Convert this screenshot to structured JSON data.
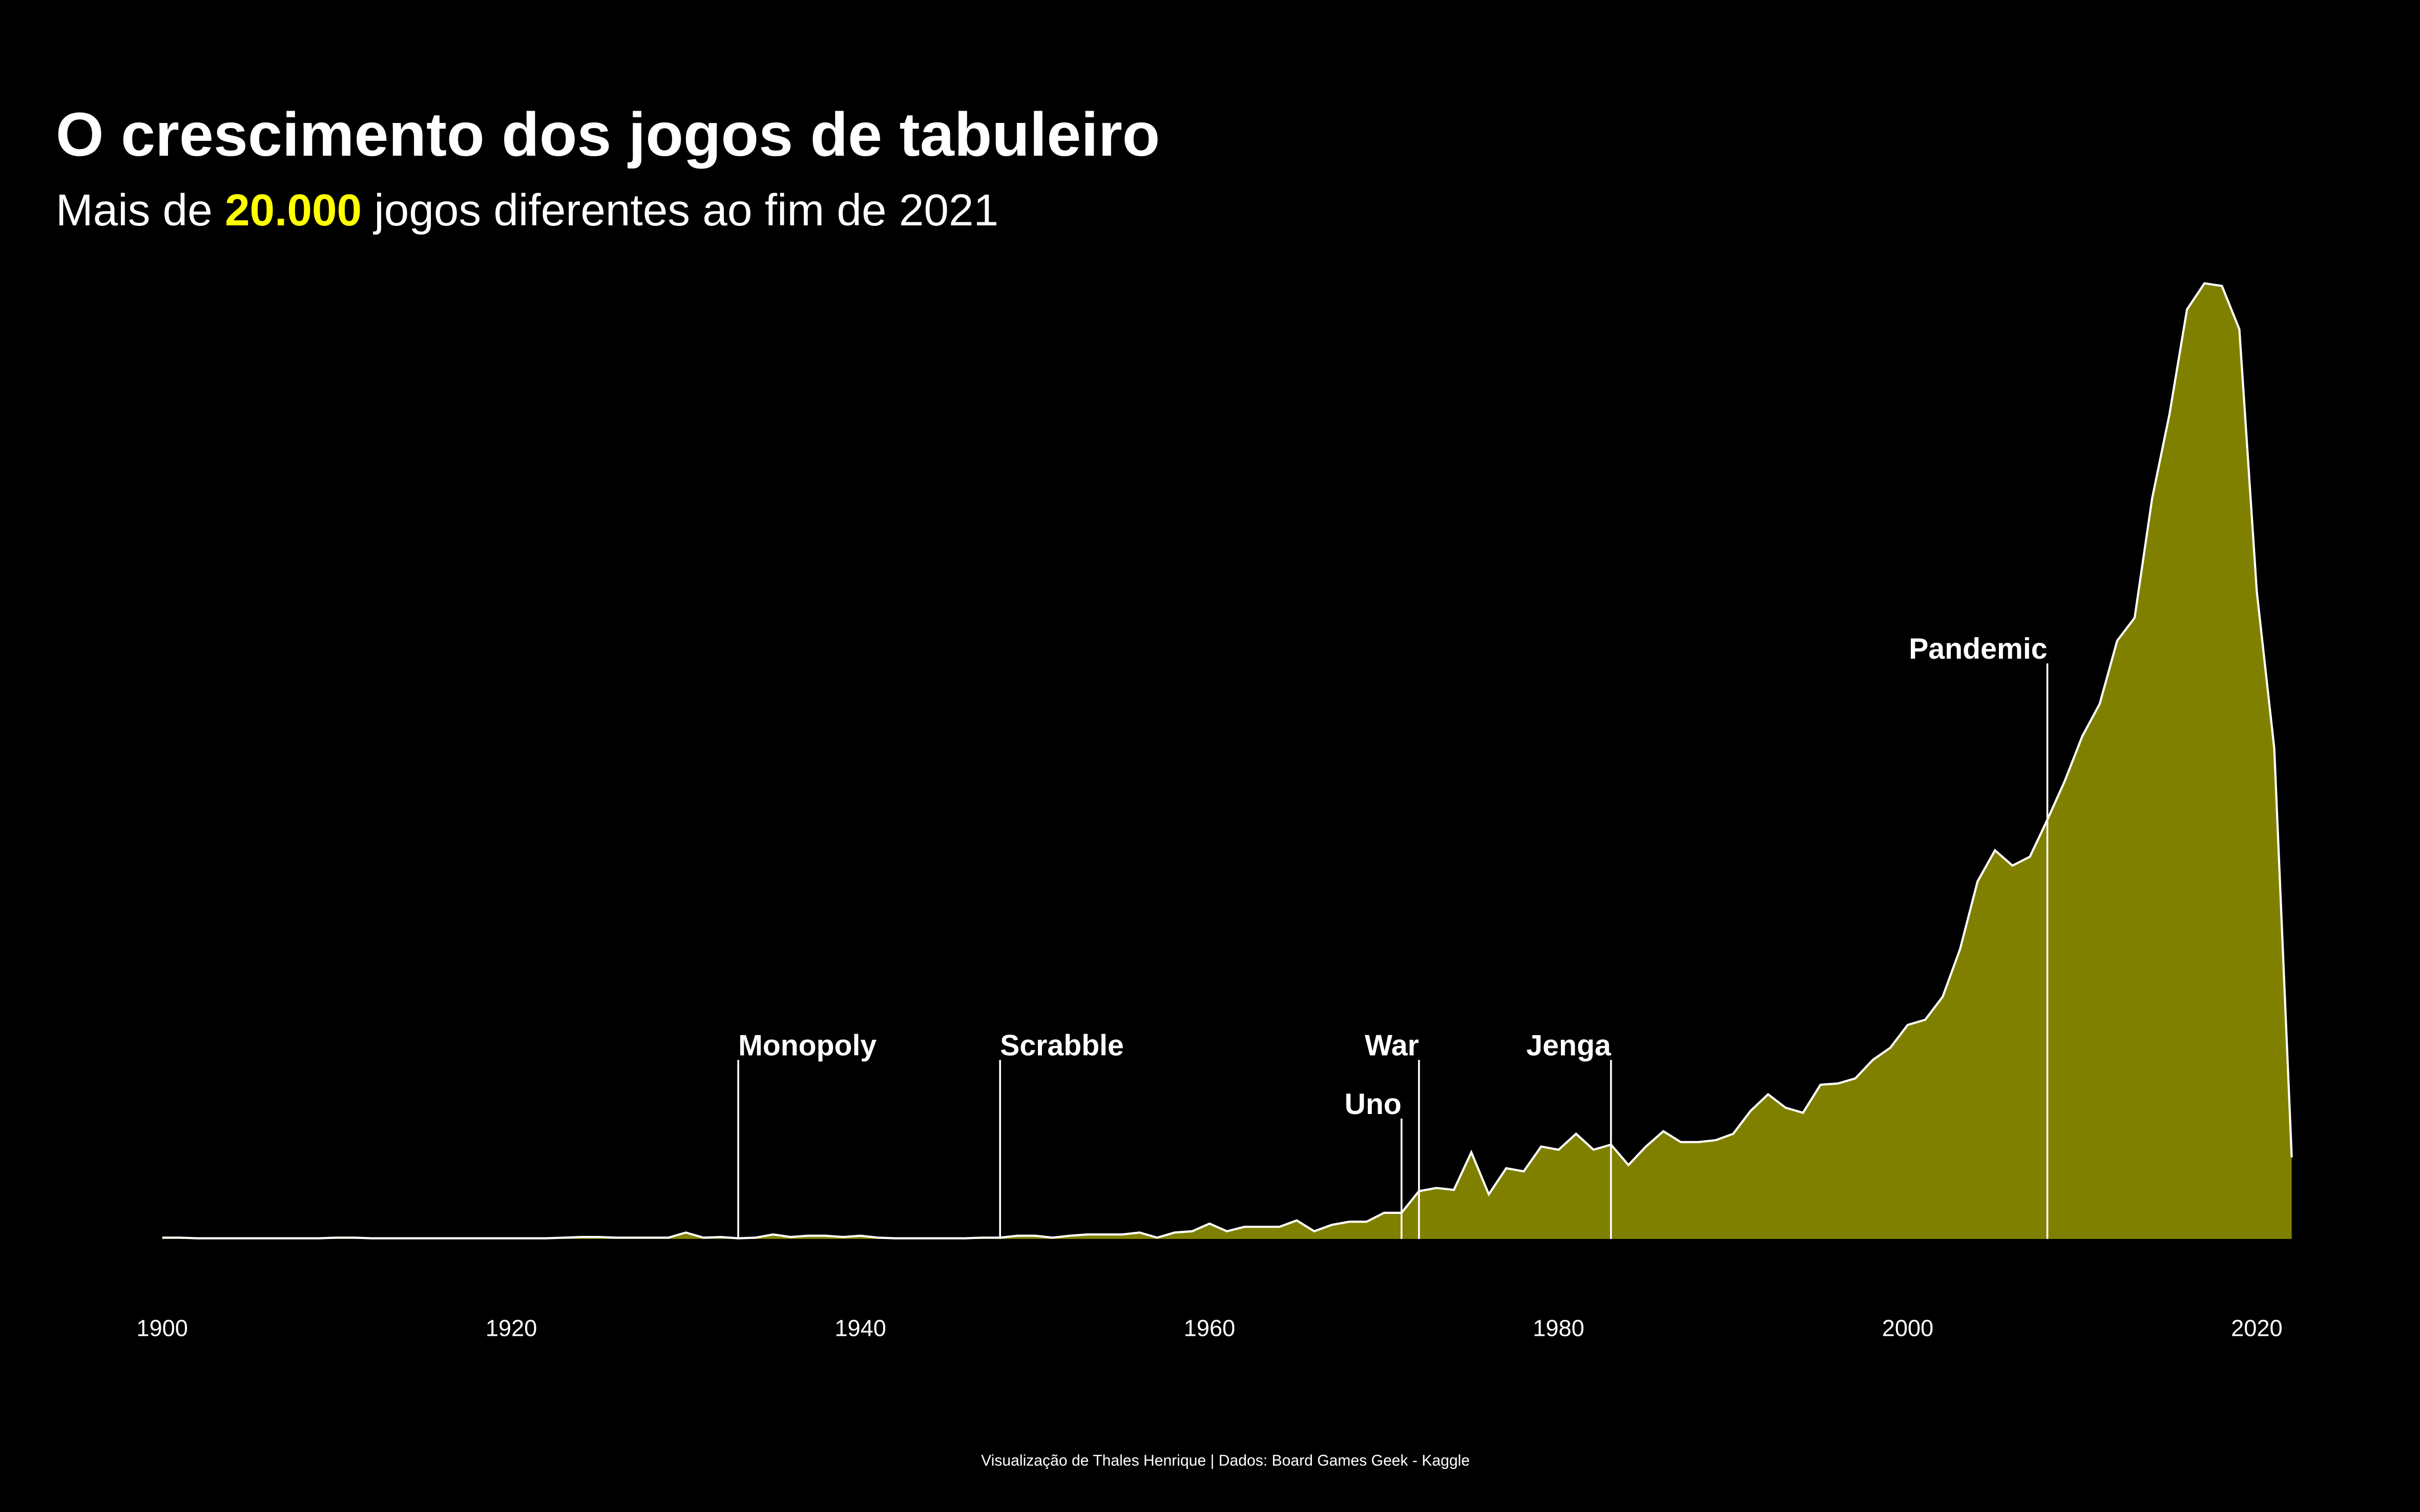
{
  "chart_data": {
    "type": "area",
    "title": "O crescimento dos jogos de tabuleiro",
    "subtitle": [
      "Mais de ",
      "20.000",
      " jogos diferentes ao fim de 2021"
    ],
    "caption": "Visualização de Thales Henrique | Dados: Board Games Geek - Kaggle",
    "x": [
      1900,
      1901,
      1902,
      1903,
      1904,
      1905,
      1906,
      1907,
      1908,
      1909,
      1910,
      1911,
      1912,
      1913,
      1914,
      1915,
      1916,
      1917,
      1918,
      1919,
      1920,
      1921,
      1922,
      1923,
      1924,
      1925,
      1926,
      1927,
      1928,
      1929,
      1930,
      1931,
      1932,
      1933,
      1934,
      1935,
      1936,
      1937,
      1938,
      1939,
      1940,
      1941,
      1942,
      1943,
      1944,
      1945,
      1946,
      1947,
      1948,
      1949,
      1950,
      1951,
      1952,
      1953,
      1954,
      1955,
      1956,
      1957,
      1958,
      1959,
      1960,
      1961,
      1962,
      1963,
      1964,
      1965,
      1966,
      1967,
      1968,
      1969,
      1970,
      1971,
      1972,
      1973,
      1974,
      1975,
      1976,
      1977,
      1978,
      1979,
      1980,
      1981,
      1982,
      1983,
      1984,
      1985,
      1986,
      1987,
      1988,
      1989,
      1990,
      1991,
      1992,
      1993,
      1994,
      1995,
      1996,
      1997,
      1998,
      1999,
      2000,
      2001,
      2002,
      2003,
      2004,
      2005,
      2006,
      2007,
      2008,
      2009,
      2010,
      2011,
      2012,
      2013,
      2014,
      2015,
      2016,
      2017,
      2018,
      2019,
      2020,
      2021,
      2022
    ],
    "values": [
      2,
      2,
      1,
      1,
      1,
      1,
      1,
      1,
      1,
      1,
      2,
      2,
      1,
      1,
      1,
      1,
      1,
      1,
      1,
      1,
      1,
      1,
      1,
      2,
      3,
      3,
      2,
      2,
      2,
      2,
      10,
      2,
      3,
      1,
      2,
      7,
      3,
      5,
      5,
      3,
      5,
      2,
      1,
      1,
      1,
      1,
      1,
      2,
      2,
      5,
      5,
      2,
      5,
      7,
      7,
      7,
      10,
      2,
      10,
      12,
      24,
      12,
      19,
      19,
      19,
      29,
      12,
      22,
      27,
      27,
      41,
      41,
      75,
      80,
      77,
      136,
      70,
      111,
      106,
      145,
      140,
      165,
      140,
      148,
      116,
      145,
      169,
      152,
      152,
      155,
      165,
      201,
      227,
      206,
      198,
      242,
      244,
      252,
      281,
      300,
      336,
      344,
      380,
      455,
      561,
      610,
      586,
      600,
      658,
      719,
      789,
      840,
      939,
      975,
      1162,
      1295,
      1459,
      1500,
      1496,
      1428,
      1016,
      770,
      128
    ],
    "color": "#808000",
    "line_color": "#ffffff",
    "highlight_color": "#ffff00",
    "xlim": [
      1900,
      2022
    ],
    "xticks": [
      1900,
      1920,
      1940,
      1960,
      1980,
      2000,
      2020
    ],
    "ylim": [
      0,
      1550
    ],
    "annotations": [
      {
        "label": "Monopoly",
        "x": 1933
      },
      {
        "label": "Scrabble",
        "x": 1948
      },
      {
        "label": "Uno",
        "x": 1971
      },
      {
        "label": "War",
        "x": 1972
      },
      {
        "label": "Jenga",
        "x": 1983
      },
      {
        "label": "Pandemic",
        "x": 2008
      }
    ]
  }
}
